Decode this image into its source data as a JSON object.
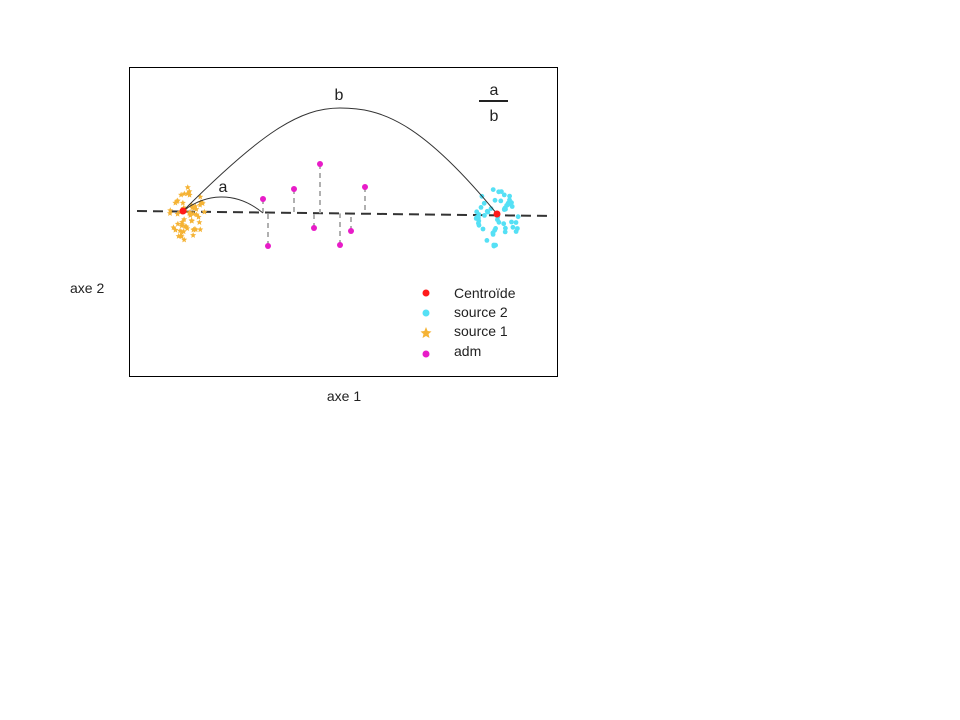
{
  "chart_data": {
    "type": "scatter",
    "xlabel": "axe 1",
    "ylabel": "axe 2",
    "annotations": {
      "short_arc_label": "a",
      "long_arc_label": "b",
      "ratio_numerator": "a",
      "ratio_denominator": "b"
    },
    "legend_position": "bottom-right",
    "legend": [
      {
        "label": "Centroïde",
        "color": "#ff1a1a",
        "marker": "circle"
      },
      {
        "label": "source 2",
        "color": "#55e0f5",
        "marker": "circle"
      },
      {
        "label": "source 1",
        "color": "#f5b335",
        "marker": "star"
      },
      {
        "label": "adm",
        "color": "#e81cc8",
        "marker": "circle"
      }
    ],
    "colors": {
      "frame": "#000000",
      "axis_line": "#333333",
      "projection_line": "#b0b0b0",
      "arc": "#333333"
    }
  }
}
